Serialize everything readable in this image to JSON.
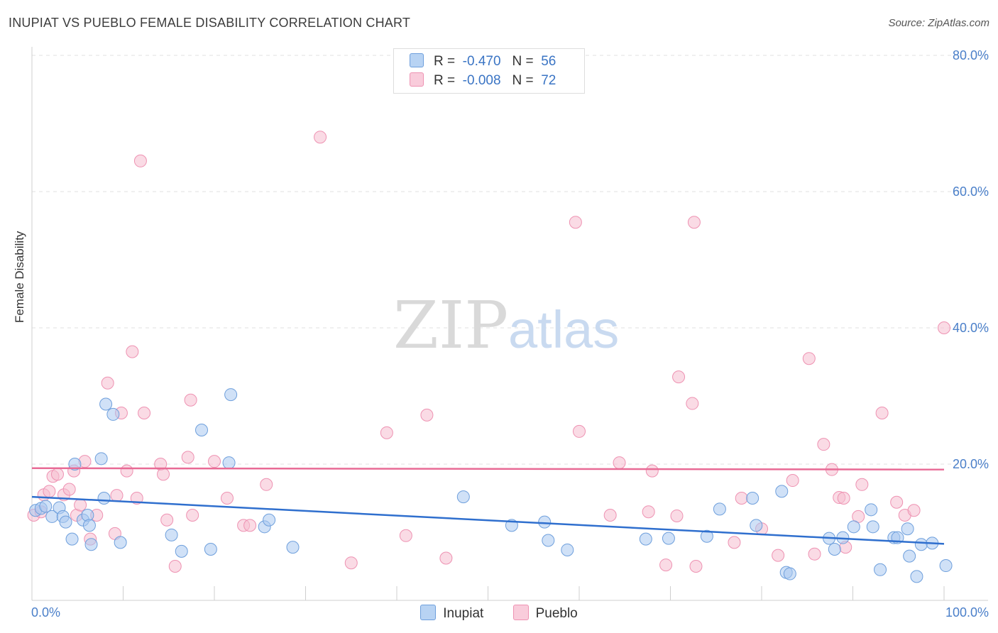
{
  "title": "INUPIAT VS PUEBLO FEMALE DISABILITY CORRELATION CHART",
  "source": "Source: ZipAtlas.com",
  "watermark": {
    "zip": "ZIP",
    "atlas": "atlas"
  },
  "legend": {
    "rows": [
      {
        "r_label": "R =",
        "r_value": "-0.470",
        "n_label": "N =",
        "n_value": "56"
      },
      {
        "r_label": "R =",
        "r_value": "-0.008",
        "n_label": "N =",
        "n_value": "72"
      }
    ]
  },
  "colors": {
    "inupiat_fill": "#a9c8f0",
    "inupiat_stroke": "#6e9fdc",
    "inupiat_line": "#2f6fce",
    "pueblo_fill": "#f6bdd0",
    "pueblo_stroke": "#ee92b2",
    "pueblo_line": "#e86a95",
    "tick_text": "#4a7fc9",
    "grid": "#e2e2e2"
  },
  "chart_data": {
    "type": "scatter",
    "title": "INUPIAT VS PUEBLO FEMALE DISABILITY CORRELATION CHART",
    "xlabel": "",
    "ylabel": "Female Disability",
    "xlim": [
      0,
      100
    ],
    "ylim": [
      0,
      80
    ],
    "x_tick_labels": [
      "0.0%",
      "100.0%"
    ],
    "y_ticks": [
      20,
      40,
      60,
      80
    ],
    "y_tick_labels": [
      "20.0%",
      "40.0%",
      "60.0%",
      "80.0%"
    ],
    "grid": "horizontal dashed",
    "legend_position": "top-center",
    "series": [
      {
        "name": "Inupiat",
        "r": -0.47,
        "n": 56,
        "trend": {
          "x": [
            0,
            100
          ],
          "y": [
            15.2,
            8.3
          ]
        },
        "points": [
          [
            0.4,
            13.2
          ],
          [
            1.0,
            13.5
          ],
          [
            1.5,
            13.8
          ],
          [
            2.2,
            12.3
          ],
          [
            3.0,
            13.6
          ],
          [
            3.4,
            12.3
          ],
          [
            3.7,
            11.5
          ],
          [
            4.4,
            9.0
          ],
          [
            4.7,
            20.0
          ],
          [
            5.6,
            11.8
          ],
          [
            6.1,
            12.5
          ],
          [
            6.3,
            11.0
          ],
          [
            6.5,
            8.2
          ],
          [
            7.6,
            20.8
          ],
          [
            7.9,
            15.0
          ],
          [
            8.1,
            28.8
          ],
          [
            8.9,
            27.3
          ],
          [
            9.7,
            8.5
          ],
          [
            15.3,
            9.6
          ],
          [
            16.4,
            7.2
          ],
          [
            18.6,
            25.0
          ],
          [
            19.6,
            7.5
          ],
          [
            21.6,
            20.2
          ],
          [
            21.8,
            30.2
          ],
          [
            25.5,
            10.8
          ],
          [
            26.0,
            11.8
          ],
          [
            28.6,
            7.8
          ],
          [
            47.3,
            15.2
          ],
          [
            52.6,
            11.0
          ],
          [
            56.2,
            11.5
          ],
          [
            56.6,
            8.8
          ],
          [
            58.7,
            7.4
          ],
          [
            67.3,
            9.0
          ],
          [
            69.8,
            9.1
          ],
          [
            74.0,
            9.4
          ],
          [
            75.4,
            13.4
          ],
          [
            79.0,
            15.0
          ],
          [
            79.4,
            11.0
          ],
          [
            82.2,
            16.0
          ],
          [
            82.7,
            4.1
          ],
          [
            83.1,
            3.9
          ],
          [
            87.4,
            9.1
          ],
          [
            88.0,
            7.5
          ],
          [
            88.9,
            9.2
          ],
          [
            90.1,
            10.8
          ],
          [
            92.0,
            13.3
          ],
          [
            92.2,
            10.8
          ],
          [
            93.0,
            4.5
          ],
          [
            94.5,
            9.2
          ],
          [
            94.9,
            9.2
          ],
          [
            96.0,
            10.5
          ],
          [
            96.2,
            6.5
          ],
          [
            97.0,
            3.5
          ],
          [
            97.5,
            8.2
          ],
          [
            98.7,
            8.4
          ],
          [
            100.2,
            5.1
          ]
        ]
      },
      {
        "name": "Pueblo",
        "r": -0.008,
        "n": 72,
        "trend": {
          "x": [
            0,
            100
          ],
          "y": [
            19.4,
            19.2
          ]
        },
        "points": [
          [
            0.2,
            12.5
          ],
          [
            1.3,
            15.5
          ],
          [
            1.9,
            16.0
          ],
          [
            2.3,
            18.2
          ],
          [
            2.8,
            18.5
          ],
          [
            3.5,
            15.5
          ],
          [
            4.1,
            16.3
          ],
          [
            4.6,
            19.0
          ],
          [
            4.9,
            12.5
          ],
          [
            5.3,
            14.0
          ],
          [
            5.8,
            20.4
          ],
          [
            6.4,
            9.0
          ],
          [
            7.1,
            12.5
          ],
          [
            8.3,
            31.9
          ],
          [
            9.1,
            9.8
          ],
          [
            9.3,
            15.4
          ],
          [
            9.8,
            27.5
          ],
          [
            10.4,
            19.0
          ],
          [
            11.0,
            36.5
          ],
          [
            11.5,
            15.0
          ],
          [
            11.9,
            64.5
          ],
          [
            12.3,
            27.5
          ],
          [
            14.1,
            20.0
          ],
          [
            14.4,
            18.5
          ],
          [
            14.8,
            11.8
          ],
          [
            15.7,
            5.0
          ],
          [
            17.1,
            21.0
          ],
          [
            17.4,
            29.4
          ],
          [
            17.6,
            12.5
          ],
          [
            20.0,
            20.4
          ],
          [
            21.4,
            15.0
          ],
          [
            23.2,
            11.0
          ],
          [
            23.9,
            11.0
          ],
          [
            25.7,
            17.0
          ],
          [
            31.6,
            68.0
          ],
          [
            35.0,
            5.5
          ],
          [
            38.9,
            24.6
          ],
          [
            41.0,
            9.5
          ],
          [
            43.3,
            27.2
          ],
          [
            45.4,
            6.2
          ],
          [
            59.6,
            55.5
          ],
          [
            60.0,
            24.8
          ],
          [
            63.4,
            12.5
          ],
          [
            64.4,
            20.2
          ],
          [
            67.6,
            13.0
          ],
          [
            68.0,
            19.0
          ],
          [
            69.5,
            5.2
          ],
          [
            70.7,
            12.4
          ],
          [
            70.9,
            32.8
          ],
          [
            72.4,
            28.9
          ],
          [
            72.6,
            55.5
          ],
          [
            72.8,
            5.0
          ],
          [
            77.0,
            8.5
          ],
          [
            77.8,
            15.0
          ],
          [
            80.0,
            10.5
          ],
          [
            81.8,
            6.6
          ],
          [
            83.4,
            17.6
          ],
          [
            85.2,
            35.5
          ],
          [
            85.8,
            6.8
          ],
          [
            86.8,
            22.9
          ],
          [
            87.7,
            19.2
          ],
          [
            88.5,
            15.1
          ],
          [
            89.0,
            15.0
          ],
          [
            89.2,
            7.8
          ],
          [
            90.6,
            12.3
          ],
          [
            91.0,
            17.0
          ],
          [
            93.2,
            27.5
          ],
          [
            94.8,
            14.4
          ],
          [
            95.7,
            12.5
          ],
          [
            96.7,
            13.2
          ],
          [
            100.0,
            40.0
          ],
          [
            1.0,
            13.0
          ]
        ]
      }
    ]
  }
}
